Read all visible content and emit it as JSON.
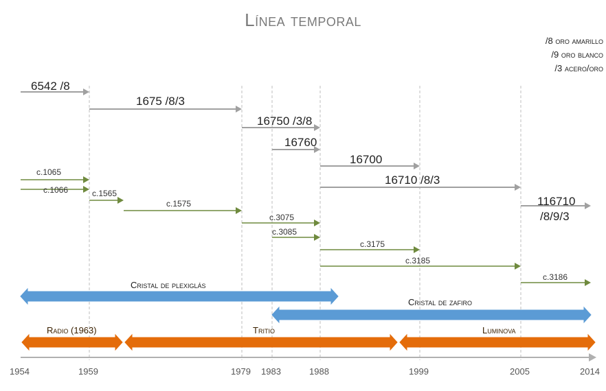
{
  "title": "Línea temporal",
  "legend": [
    "/8 oro amarillo",
    "/9 oro blanco",
    "/3 acero/oro"
  ],
  "years": [
    "1954",
    "1959",
    "1979",
    "1983",
    "1988",
    "1999",
    "2005",
    "2014"
  ],
  "refs": [
    {
      "label": "6542 /8",
      "from": 1954,
      "to": 1959
    },
    {
      "label": "1675 /8/3",
      "from": 1959,
      "to": 1979
    },
    {
      "label": "16750 /3/8",
      "from": 1979,
      "to": 1988
    },
    {
      "label": "16760",
      "from": 1983,
      "to": 1988
    },
    {
      "label": "16700",
      "from": 1988,
      "to": 1999
    },
    {
      "label": "16710 /8/3",
      "from": 1988,
      "to": 2005
    },
    {
      "label": "116710",
      "label2": "/8/9/3",
      "from": 2005,
      "to": 2014
    }
  ],
  "calibers": [
    {
      "label": "c.1065",
      "from": 1954,
      "to": 1959
    },
    {
      "label": "c.1066",
      "from": 1954,
      "to": 1959
    },
    {
      "label": "c.1565",
      "from": 1959,
      "to": 1962
    },
    {
      "label": "c.1575",
      "from": 1962,
      "to": 1979
    },
    {
      "label": "c.3075",
      "from": 1979,
      "to": 1988
    },
    {
      "label": "c.3085",
      "from": 1983,
      "to": 1988
    },
    {
      "label": "c.3175",
      "from": 1988,
      "to": 1999
    },
    {
      "label": "c.3185",
      "from": 1988,
      "to": 2005
    },
    {
      "label": "c.3186",
      "from": 2005,
      "to": 2014
    }
  ],
  "crystals": [
    {
      "label": "Cristal de plexiglás",
      "from": 1954,
      "to": 1988
    },
    {
      "label": "Cristal de zafiro",
      "from": 1983,
      "to": 2014
    }
  ],
  "lume": [
    {
      "label": "Radio (1963)",
      "from": 1954,
      "to": 1962
    },
    {
      "label": "Tritio",
      "from": 1962,
      "to": 1997
    },
    {
      "label": "Luminova",
      "from": 1997,
      "to": 2014
    }
  ],
  "colors": {
    "ref_arrow": "#a0a0a0",
    "cal_arrow": "#6f8a3e",
    "blue_band": "#5b9bd5",
    "orange_band": "#e46c0a",
    "axis": "#b0b0b0",
    "guide": "#bdbdbd"
  }
}
